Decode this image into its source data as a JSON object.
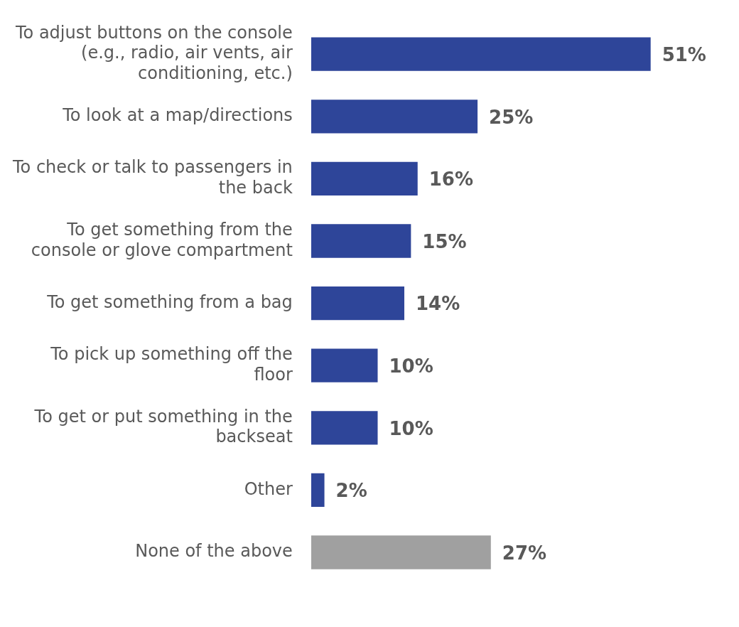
{
  "chart_data": {
    "type": "bar",
    "orientation": "horizontal",
    "categories": [
      "To adjust buttons on the console (e.g., radio, air vents, air conditioning, etc.)",
      "To look at a map/directions",
      "To check or talk to passengers in the back",
      "To get something from the console or glove compartment",
      "To get something from a bag",
      "To pick up something off the floor",
      "To get or put something in the backseat",
      "Other",
      "None of the above"
    ],
    "values": [
      51,
      25,
      16,
      15,
      14,
      10,
      10,
      2,
      27
    ],
    "colors": [
      "#2e4599",
      "#2e4599",
      "#2e4599",
      "#2e4599",
      "#2e4599",
      "#2e4599",
      "#2e4599",
      "#2e4599",
      "#a0a0a0"
    ],
    "value_labels": [
      "51%",
      "25%",
      "16%",
      "15%",
      "14%",
      "10%",
      "10%",
      "2%",
      "27%"
    ],
    "legend": false
  }
}
